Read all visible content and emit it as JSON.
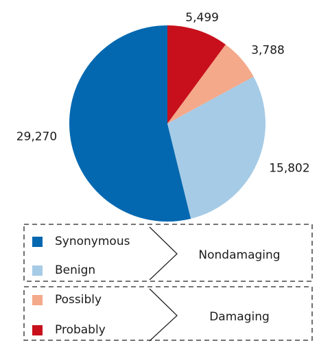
{
  "chart_data": {
    "type": "pie",
    "categories": [
      "Synonymous",
      "Benign",
      "Possibly",
      "Probably"
    ],
    "values": [
      29270,
      15802,
      3788,
      5499
    ],
    "value_labels": [
      "29,270",
      "15,802",
      "3,788",
      "5,499"
    ],
    "colors": [
      "#0468b0",
      "#a6cbe6",
      "#f4a98a",
      "#c8101c"
    ],
    "groups": [
      {
        "label": "Nondamaging",
        "members": [
          0,
          1
        ]
      },
      {
        "label": "Damaging",
        "members": [
          2,
          3
        ]
      }
    ]
  }
}
